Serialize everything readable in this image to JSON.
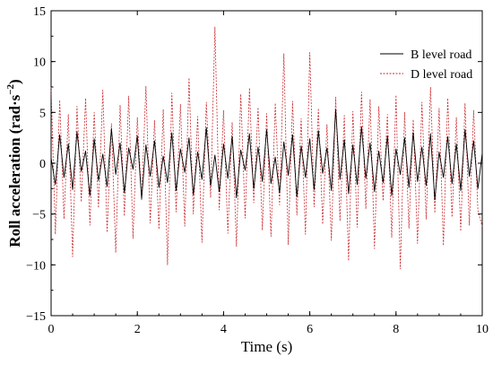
{
  "chart_data": {
    "type": "line",
    "title": "",
    "xlabel": "Time (s)",
    "ylabel": "Roll acceleration (rad·s",
    "ylabel_superscript": "−2",
    "ylabel_close": ")",
    "xlim": [
      0,
      10
    ],
    "ylim": [
      -15,
      15
    ],
    "x_ticks": [
      0,
      2,
      4,
      6,
      8,
      10
    ],
    "x_tick_labels": [
      "0",
      "2",
      "4",
      "6",
      "8",
      "10"
    ],
    "y_ticks": [
      -15,
      -10,
      -5,
      0,
      5,
      10,
      15
    ],
    "y_tick_labels": [
      "−15",
      "−10",
      "−5",
      "0",
      "5",
      "10",
      "15"
    ],
    "grid": false,
    "legend_position": "top-right",
    "series": [
      {
        "name": "B level road",
        "color": "#000000",
        "style": "solid",
        "x": [
          0,
          0.1,
          0.2,
          0.3,
          0.4,
          0.5,
          0.6,
          0.7,
          0.8,
          0.9,
          1,
          1.1,
          1.2,
          1.3,
          1.4,
          1.5,
          1.6,
          1.7,
          1.8,
          1.9,
          2,
          2.1,
          2.2,
          2.3,
          2.4,
          2.5,
          2.6,
          2.7,
          2.8,
          2.9,
          3,
          3.1,
          3.2,
          3.3,
          3.4,
          3.5,
          3.6,
          3.7,
          3.8,
          3.9,
          4,
          4.1,
          4.2,
          4.3,
          4.4,
          4.5,
          4.6,
          4.7,
          4.8,
          4.9,
          5,
          5.1,
          5.2,
          5.3,
          5.4,
          5.5,
          5.6,
          5.7,
          5.8,
          5.9,
          6,
          6.1,
          6.2,
          6.3,
          6.4,
          6.5,
          6.6,
          6.7,
          6.8,
          6.9,
          7,
          7.1,
          7.2,
          7.3,
          7.4,
          7.5,
          7.6,
          7.7,
          7.8,
          7.9,
          8,
          8.1,
          8.2,
          8.3,
          8.4,
          8.5,
          8.6,
          8.7,
          8.8,
          8.9,
          9,
          9.1,
          9.2,
          9.3,
          9.4,
          9.5,
          9.6,
          9.7,
          9.8,
          9.9,
          10
        ],
        "values": [
          0.5,
          -2.1,
          2.8,
          -1.4,
          1.9,
          -2.6,
          3.1,
          -0.8,
          1.2,
          -3.2,
          2.4,
          -1.7,
          0.9,
          -2.3,
          3.4,
          -1.1,
          2.0,
          -2.9,
          1.5,
          -0.6,
          2.7,
          -3.5,
          1.8,
          -1.3,
          2.2,
          -2.4,
          0.7,
          -1.9,
          3.0,
          -2.7,
          1.4,
          -0.9,
          2.5,
          -3.1,
          1.1,
          -1.6,
          3.5,
          -2.2,
          0.8,
          -2.8,
          1.9,
          -1.5,
          2.6,
          -3.4,
          1.3,
          -0.7,
          2.9,
          -2.5,
          1.6,
          -1.8,
          3.3,
          -2.0,
          0.6,
          -2.9,
          2.1,
          -1.2,
          2.8,
          -3.3,
          1.7,
          -1.4,
          2.4,
          -2.6,
          3.2,
          -1.0,
          1.5,
          -2.7,
          5.3,
          -1.6,
          2.3,
          -3.0,
          1.8,
          -2.1,
          3.6,
          -1.5,
          2.0,
          -2.8,
          1.2,
          -1.9,
          2.7,
          -3.2,
          1.4,
          -1.1,
          2.5,
          -2.4,
          3.0,
          -1.8,
          1.6,
          -2.2,
          2.9,
          -3.6,
          1.1,
          -1.4,
          2.6,
          -2.0,
          1.9,
          -2.7,
          3.3,
          -1.3,
          2.2,
          -2.5,
          1.0
        ]
      },
      {
        "name": "D level road",
        "color": "#c8282e",
        "style": "dotted",
        "x": [
          0,
          0.1,
          0.2,
          0.3,
          0.4,
          0.5,
          0.6,
          0.7,
          0.8,
          0.9,
          1,
          1.1,
          1.2,
          1.3,
          1.4,
          1.5,
          1.6,
          1.7,
          1.8,
          1.9,
          2,
          2.1,
          2.2,
          2.3,
          2.4,
          2.5,
          2.6,
          2.7,
          2.8,
          2.9,
          3,
          3.1,
          3.2,
          3.3,
          3.4,
          3.5,
          3.6,
          3.7,
          3.8,
          3.9,
          4,
          4.1,
          4.2,
          4.3,
          4.4,
          4.5,
          4.6,
          4.7,
          4.8,
          4.9,
          5,
          5.1,
          5.2,
          5.3,
          5.4,
          5.5,
          5.6,
          5.7,
          5.8,
          5.9,
          6,
          6.1,
          6.2,
          6.3,
          6.4,
          6.5,
          6.6,
          6.7,
          6.8,
          6.9,
          7,
          7.1,
          7.2,
          7.3,
          7.4,
          7.5,
          7.6,
          7.7,
          7.8,
          7.9,
          8,
          8.1,
          8.2,
          8.3,
          8.4,
          8.5,
          8.6,
          8.7,
          8.8,
          8.9,
          9,
          9.1,
          9.2,
          9.3,
          9.4,
          9.5,
          9.6,
          9.7,
          9.8,
          9.9,
          10
        ],
        "values": [
          7.5,
          -7.0,
          6.2,
          -5.5,
          4.8,
          -9.2,
          5.6,
          -3.8,
          6.4,
          -6.1,
          5.0,
          -4.4,
          7.2,
          -6.8,
          3.9,
          -8.8,
          5.7,
          -5.2,
          6.6,
          -7.4,
          4.5,
          -3.6,
          7.6,
          -5.9,
          4.2,
          -6.5,
          5.3,
          -10.0,
          6.9,
          -4.8,
          5.8,
          -6.2,
          8.4,
          -5.0,
          4.6,
          -7.8,
          6.0,
          -3.4,
          13.4,
          -4.6,
          5.2,
          -6.9,
          4.0,
          -8.2,
          6.8,
          -5.4,
          7.4,
          -3.9,
          5.5,
          -6.6,
          4.9,
          -7.2,
          5.9,
          -4.1,
          10.8,
          -8.0,
          6.1,
          -5.1,
          4.4,
          -7.0,
          10.9,
          -4.3,
          5.4,
          -6.0,
          3.8,
          -7.6,
          6.5,
          -5.7,
          4.7,
          -9.6,
          5.1,
          -6.3,
          7.0,
          -4.5,
          6.3,
          -8.4,
          5.6,
          -3.7,
          4.8,
          -7.3,
          6.7,
          -10.4,
          5.0,
          -6.4,
          4.3,
          -7.9,
          6.0,
          -5.5,
          7.5,
          -4.9,
          5.4,
          -8.1,
          6.4,
          -5.3,
          4.5,
          -6.7,
          5.9,
          -6.1,
          5.2,
          -4.7,
          -6.2
        ]
      }
    ]
  }
}
